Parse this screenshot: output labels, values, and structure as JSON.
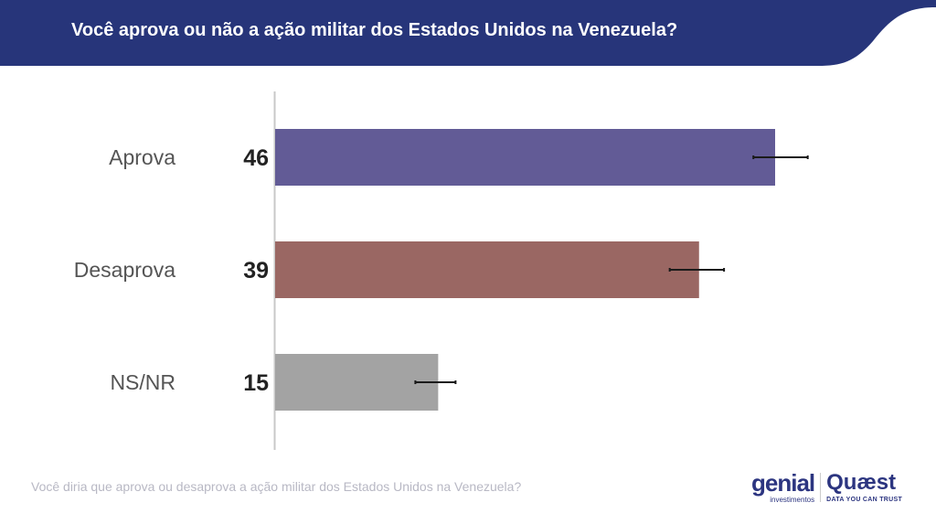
{
  "header": {
    "title": "Você aprova ou não a ação militar dos Estados Unidos na Venezuela?",
    "color": "#27357a"
  },
  "chart_data": {
    "type": "bar",
    "orientation": "horizontal",
    "categories": [
      "Aprova",
      "Desaprova",
      "NS/NR"
    ],
    "values": [
      46,
      39,
      15
    ],
    "error_bars": [
      [
        44,
        49
      ],
      [
        36.3,
        41.3
      ],
      [
        12.9,
        16.6
      ]
    ],
    "colors": [
      "#625b96",
      "#9a6763",
      "#a3a3a3"
    ],
    "xlim": [
      0,
      60
    ],
    "grid": false
  },
  "footnote": "Você diria que aprova ou desaprova a ação militar dos Estados Unidos na Venezuela?",
  "logos": {
    "genial": "genial",
    "genial_sub": "investimentos",
    "quaest": "Quæst",
    "quaest_sub": "DATA YOU CAN TRUST"
  }
}
